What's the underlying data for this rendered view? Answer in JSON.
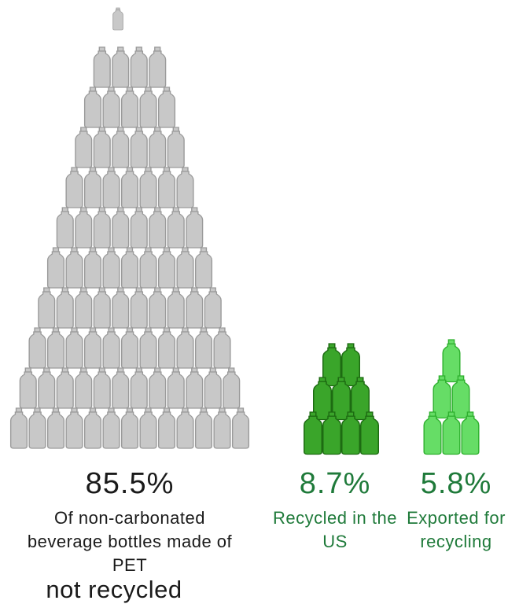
{
  "chart_data": {
    "type": "bar",
    "categories": [
      "not recycled",
      "Recycled in the US",
      "Exported for recycling"
    ],
    "values": [
      85.5,
      8.7,
      5.8
    ],
    "unit": "%",
    "labels": {
      "not_recycled": {
        "value_text": "85.5%",
        "description": "Of non-carbonated beverage bottles made of PET",
        "note": "not recycled"
      },
      "us": {
        "value_text": "8.7%",
        "description": "Recycled in the US"
      },
      "exported": {
        "value_text": "5.8%",
        "description": "Exported for recycling"
      }
    }
  },
  "colors": {
    "not_recycled": "#c8c8c8",
    "us": "#3aa52a",
    "exported": "#66dd66",
    "text_dark": "#1a1a1a",
    "text_green": "#1f7a3a"
  },
  "icons": [
    "bottle-icon"
  ]
}
